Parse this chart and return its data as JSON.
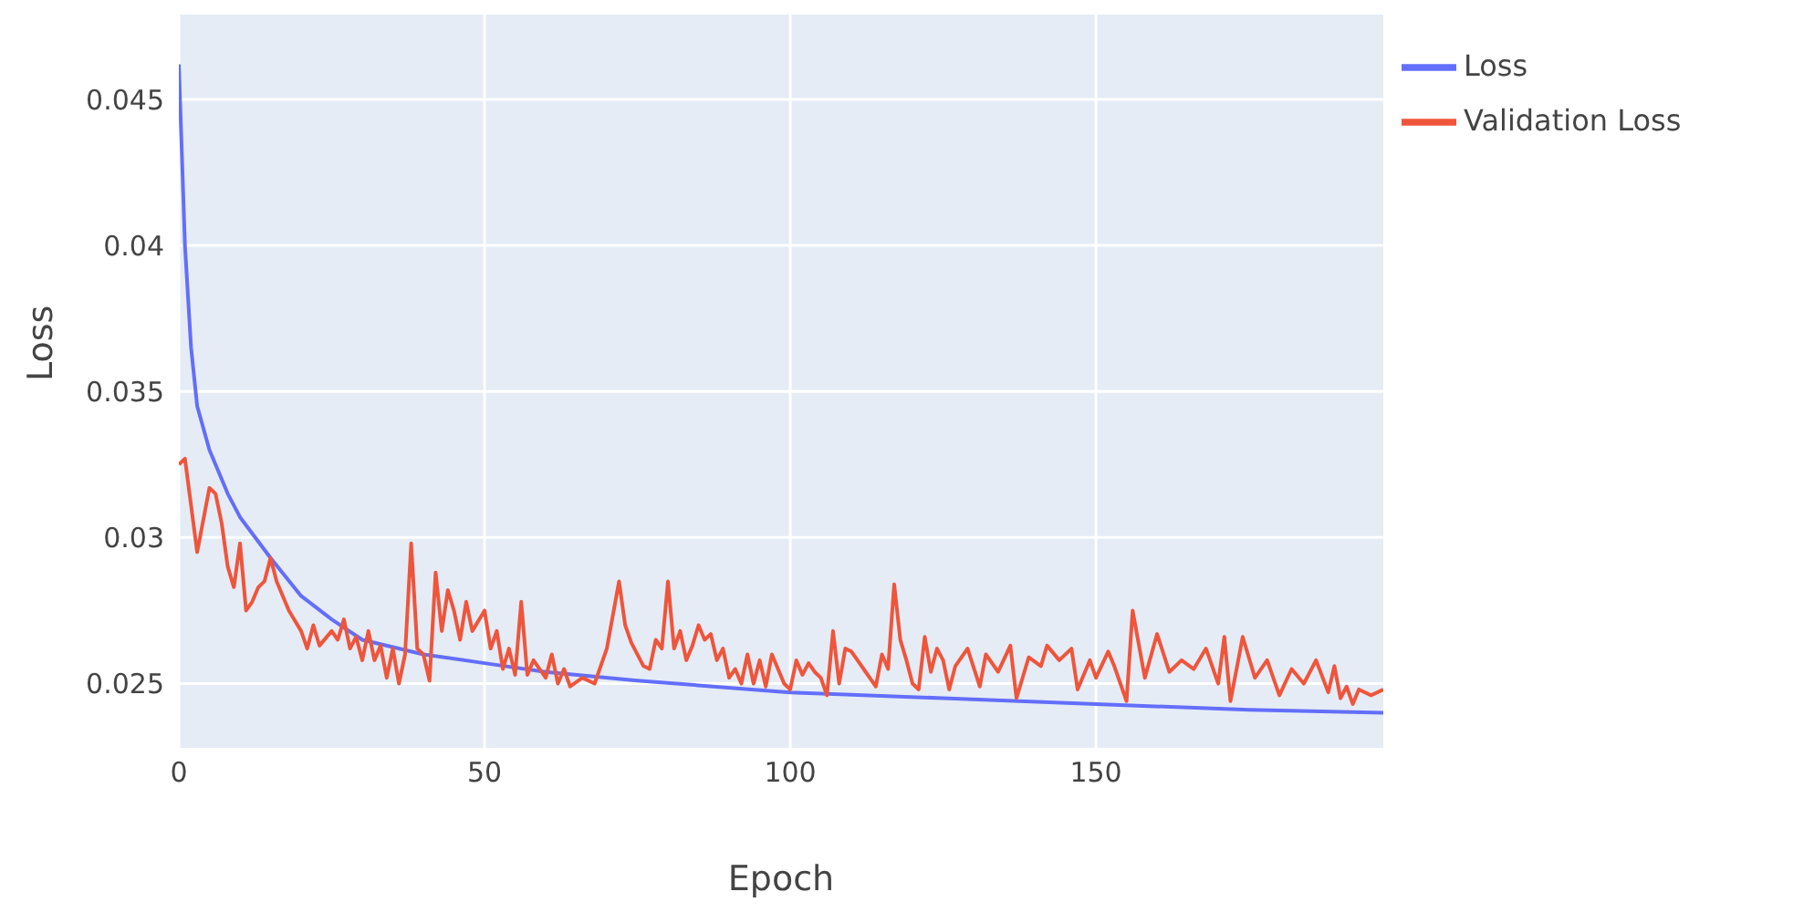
{
  "chart_data": {
    "type": "line",
    "xlabel": "Epoch",
    "ylabel": "Loss",
    "xlim": [
      0,
      197
    ],
    "ylim": [
      0.0228,
      0.0479
    ],
    "xticks": [
      0,
      50,
      100,
      150
    ],
    "yticks": [
      0.025,
      0.03,
      0.035,
      0.04,
      0.045
    ],
    "grid": true,
    "legend": "top right",
    "marker": "none",
    "line_style": "solid",
    "series": [
      {
        "name": "Loss",
        "color": "#636efa",
        "x": [
          0,
          1,
          2,
          3,
          5,
          8,
          10,
          15,
          20,
          25,
          30,
          40,
          50,
          60,
          75,
          100,
          125,
          150,
          175,
          197
        ],
        "values": [
          0.0462,
          0.04,
          0.0365,
          0.0345,
          0.033,
          0.0315,
          0.0307,
          0.0293,
          0.028,
          0.0272,
          0.0265,
          0.026,
          0.0257,
          0.0254,
          0.0251,
          0.0247,
          0.0245,
          0.0243,
          0.0241,
          0.024
        ]
      },
      {
        "name": "Validation Loss",
        "color": "#ef553b",
        "x": [
          0,
          1,
          3,
          5,
          6,
          7,
          8,
          9,
          10,
          11,
          12,
          13,
          14,
          15,
          16,
          18,
          20,
          21,
          22,
          23,
          25,
          26,
          27,
          28,
          29,
          30,
          31,
          32,
          33,
          34,
          35,
          36,
          37,
          38,
          39,
          40,
          41,
          42,
          43,
          44,
          45,
          46,
          47,
          48,
          50,
          51,
          52,
          53,
          54,
          55,
          56,
          57,
          58,
          60,
          61,
          62,
          63,
          64,
          66,
          68,
          70,
          72,
          73,
          74,
          76,
          77,
          78,
          79,
          80,
          81,
          82,
          83,
          84,
          85,
          86,
          87,
          88,
          89,
          90,
          91,
          92,
          93,
          94,
          95,
          96,
          97,
          98,
          99,
          100,
          101,
          102,
          103,
          104,
          105,
          106,
          107,
          108,
          109,
          110,
          111,
          112,
          113,
          114,
          115,
          116,
          117,
          118,
          119,
          120,
          121,
          122,
          123,
          124,
          125,
          126,
          127,
          129,
          131,
          132,
          134,
          136,
          137,
          139,
          141,
          142,
          144,
          146,
          147,
          149,
          150,
          152,
          153,
          155,
          156,
          158,
          160,
          162,
          164,
          166,
          168,
          170,
          171,
          172,
          174,
          176,
          178,
          180,
          182,
          184,
          186,
          188,
          189,
          190,
          191,
          192,
          193,
          195,
          197
        ],
        "values": [
          0.0325,
          0.0327,
          0.0295,
          0.0317,
          0.0315,
          0.0305,
          0.029,
          0.0283,
          0.0298,
          0.0275,
          0.0278,
          0.0283,
          0.0285,
          0.0293,
          0.0285,
          0.0275,
          0.0268,
          0.0262,
          0.027,
          0.0263,
          0.0268,
          0.0265,
          0.0272,
          0.0262,
          0.0266,
          0.0258,
          0.0268,
          0.0258,
          0.0263,
          0.0252,
          0.0262,
          0.025,
          0.026,
          0.0298,
          0.0262,
          0.026,
          0.0251,
          0.0288,
          0.0268,
          0.0282,
          0.0275,
          0.0265,
          0.0278,
          0.0268,
          0.0275,
          0.0262,
          0.0268,
          0.0255,
          0.0262,
          0.0253,
          0.0278,
          0.0253,
          0.0258,
          0.0252,
          0.026,
          0.025,
          0.0255,
          0.0249,
          0.0252,
          0.025,
          0.0262,
          0.0285,
          0.027,
          0.0264,
          0.0256,
          0.0255,
          0.0265,
          0.0262,
          0.0285,
          0.0262,
          0.0268,
          0.0258,
          0.0263,
          0.027,
          0.0265,
          0.0267,
          0.0258,
          0.0262,
          0.0252,
          0.0255,
          0.025,
          0.026,
          0.025,
          0.0258,
          0.0249,
          0.026,
          0.0255,
          0.025,
          0.0248,
          0.0258,
          0.0253,
          0.0257,
          0.0254,
          0.0252,
          0.0246,
          0.0268,
          0.025,
          0.0262,
          0.0261,
          0.0258,
          0.0255,
          0.0252,
          0.0249,
          0.026,
          0.0255,
          0.0284,
          0.0265,
          0.0258,
          0.025,
          0.0248,
          0.0266,
          0.0254,
          0.0262,
          0.0258,
          0.0248,
          0.0256,
          0.0262,
          0.0249,
          0.026,
          0.0254,
          0.0263,
          0.0245,
          0.0259,
          0.0256,
          0.0263,
          0.0258,
          0.0262,
          0.0248,
          0.0258,
          0.0252,
          0.0261,
          0.0256,
          0.0244,
          0.0275,
          0.0252,
          0.0267,
          0.0254,
          0.0258,
          0.0255,
          0.0262,
          0.025,
          0.0266,
          0.0244,
          0.0266,
          0.0252,
          0.0258,
          0.0246,
          0.0255,
          0.025,
          0.0258,
          0.0247,
          0.0256,
          0.0245,
          0.0249,
          0.0243,
          0.0248,
          0.0246,
          0.0248
        ]
      }
    ]
  }
}
